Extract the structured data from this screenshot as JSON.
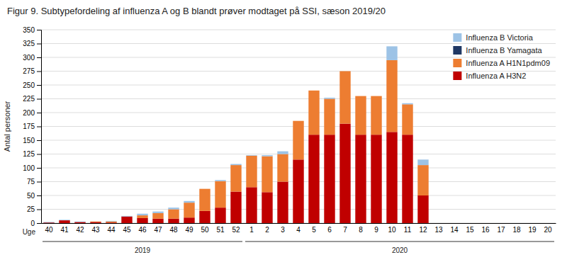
{
  "chart_data": {
    "type": "bar",
    "stacked": true,
    "title": "Figur 9. Subtypefordeling af influenza A og B blandt prøver modtaget på SSI, sæson 2019/20",
    "ylabel": "Antal personer",
    "xlabel": "Uge",
    "categories": [
      "40",
      "41",
      "42",
      "43",
      "44",
      "45",
      "46",
      "47",
      "48",
      "49",
      "50",
      "51",
      "52",
      "1",
      "2",
      "3",
      "4",
      "5",
      "6",
      "7",
      "8",
      "9",
      "10",
      "11",
      "12",
      "13",
      "14",
      "15",
      "16",
      "17",
      "18",
      "19",
      "20"
    ],
    "series": [
      {
        "name": "Influenza A H3N2",
        "color": "#C00000",
        "values": [
          1,
          5,
          2,
          2,
          1,
          12,
          9,
          8,
          8,
          10,
          22,
          28,
          57,
          65,
          56,
          75,
          115,
          160,
          160,
          180,
          160,
          160,
          165,
          160,
          50,
          0,
          0,
          0,
          0,
          0,
          0,
          0,
          0
        ]
      },
      {
        "name": "Influenza A H1N1pdm09",
        "color": "#ED7D31",
        "values": [
          0,
          0,
          0,
          1,
          2,
          0,
          5,
          10,
          17,
          27,
          40,
          48,
          48,
          57,
          65,
          50,
          70,
          80,
          65,
          95,
          70,
          70,
          130,
          55,
          55,
          0,
          0,
          0,
          0,
          0,
          0,
          0,
          0
        ]
      },
      {
        "name": "Influenza B Yamagata",
        "color": "#1F3864",
        "values": [
          0,
          0,
          0,
          0,
          0,
          0,
          0,
          0,
          0,
          0,
          0,
          0,
          0,
          0,
          0,
          0,
          0,
          0,
          0,
          0,
          0,
          0,
          0,
          0,
          0,
          0,
          0,
          0,
          0,
          0,
          0,
          0,
          0
        ]
      },
      {
        "name": "Influenza B Victoria",
        "color": "#9DC3E6",
        "values": [
          1,
          1,
          1,
          0,
          1,
          1,
          3,
          3,
          3,
          3,
          0,
          2,
          2,
          1,
          2,
          5,
          0,
          0,
          2,
          0,
          0,
          0,
          25,
          2,
          10,
          0,
          0,
          0,
          0,
          0,
          0,
          0,
          0
        ]
      }
    ],
    "annotations": [
      {
        "text": "2019",
        "start": "40",
        "end": "52"
      },
      {
        "text": "2020",
        "start": "1",
        "end": "20"
      }
    ],
    "ylim": [
      0,
      350
    ],
    "yticks": [
      0,
      25,
      50,
      75,
      100,
      125,
      150,
      175,
      200,
      225,
      250,
      275,
      300,
      325,
      350
    ],
    "grid": true,
    "legend": "upper right"
  }
}
